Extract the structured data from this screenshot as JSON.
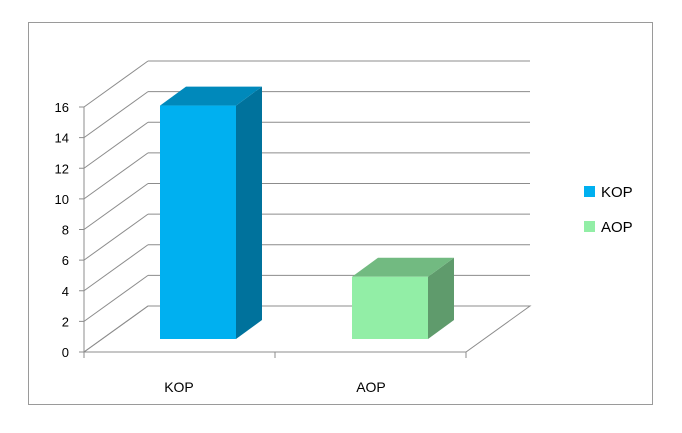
{
  "chart_data": {
    "type": "bar",
    "style": "3d-column",
    "categories": [
      "KOP",
      "AOP"
    ],
    "values": [
      15,
      4
    ],
    "series_colors": [
      "#00b0f0",
      "#92eea6"
    ],
    "ylim": [
      0,
      16
    ],
    "yticks": [
      "0",
      "2",
      "4",
      "6",
      "8",
      "10",
      "12",
      "14",
      "16"
    ],
    "grid": true,
    "legend": {
      "placement": "right",
      "entries": [
        {
          "label": "KOP",
          "color": "#00b0f0"
        },
        {
          "label": "AOP",
          "color": "#92eea6"
        }
      ]
    }
  }
}
